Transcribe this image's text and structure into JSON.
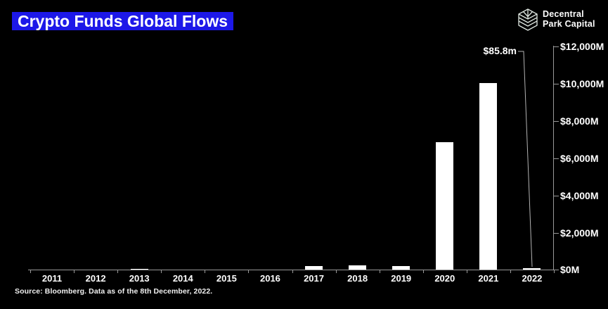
{
  "title": "Crypto Funds Global Flows",
  "logo": {
    "line1": "Decentral",
    "line2": "Park Capital"
  },
  "source": "Source: Bloomberg. Data as of the 8th December, 2022.",
  "colors": {
    "background": "#000000",
    "title_bg": "#1d18e8",
    "bar": "#ffffff",
    "axis": "#999999",
    "leader_line": "#b3b3b3",
    "logo_stroke": "#dfe7e1",
    "text": "#ffffff"
  },
  "chart_data": {
    "type": "bar",
    "title": "Crypto Funds Global Flows",
    "categories": [
      "2011",
      "2012",
      "2013",
      "2014",
      "2015",
      "2016",
      "2017",
      "2018",
      "2019",
      "2020",
      "2021",
      "2022"
    ],
    "values": [
      0,
      0,
      50,
      0,
      0,
      0,
      190,
      245,
      210,
      6850,
      10050,
      85.8
    ],
    "unit": "USD millions",
    "xlabel": "",
    "ylabel": "",
    "ylim": [
      0,
      12000
    ],
    "y_tick_values": [
      0,
      2000,
      4000,
      6000,
      8000,
      10000,
      12000
    ],
    "y_ticks": [
      "$0M",
      "$2,000M",
      "$4,000M",
      "$6,000M",
      "$8,000M",
      "$10,000M",
      "$12,000M"
    ],
    "y_axis_side": "right",
    "grid": false,
    "legend": false,
    "annotation": {
      "text": "$85.8m",
      "category": "2022",
      "value": 85.8
    }
  }
}
